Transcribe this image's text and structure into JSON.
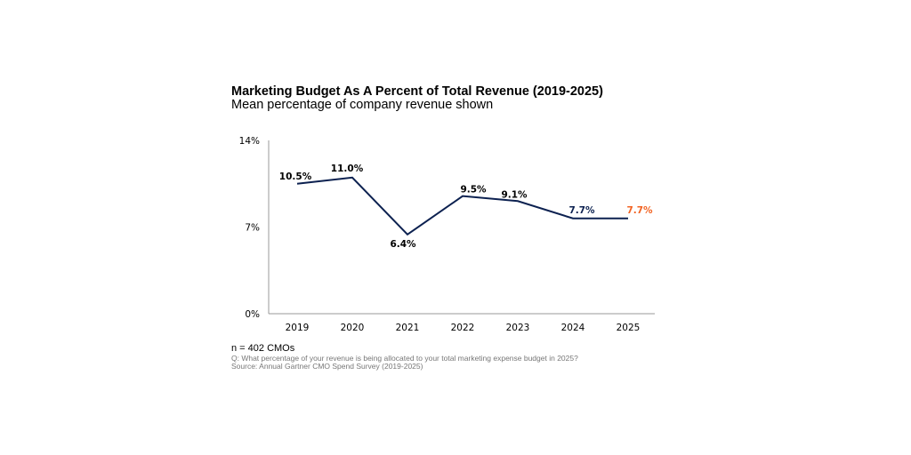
{
  "chart_data": {
    "type": "line",
    "title": "Marketing Budget As A Percent of Total Revenue (2019-2025)",
    "subtitle": "Mean percentage of company revenue shown",
    "categories": [
      "2019",
      "2020",
      "2021",
      "2022",
      "2023",
      "2024",
      "2025"
    ],
    "values": [
      10.5,
      11.0,
      6.4,
      9.5,
      9.1,
      7.7,
      7.7
    ],
    "data_labels": [
      "10.5%",
      "11.0%",
      "6.4%",
      "9.5%",
      "9.1%",
      "7.7%",
      "7.7%"
    ],
    "label_colors": [
      "#000000",
      "#000000",
      "#000000",
      "#000000",
      "#000000",
      "#0c2150",
      "#f26322"
    ],
    "ylim": [
      0,
      14
    ],
    "yticks": [
      0,
      7,
      14
    ],
    "ytick_labels": [
      "0%",
      "7%",
      "14%"
    ],
    "line_color": "#0c2150",
    "grid": false,
    "legend": "none"
  },
  "footnotes": {
    "n": "n = 402 CMOs",
    "question": "Q: What percentage of your revenue is being allocated to your total marketing expense budget in 2025?",
    "source": "Source: Annual Gartner CMO Spend Survey (2019-2025)"
  }
}
